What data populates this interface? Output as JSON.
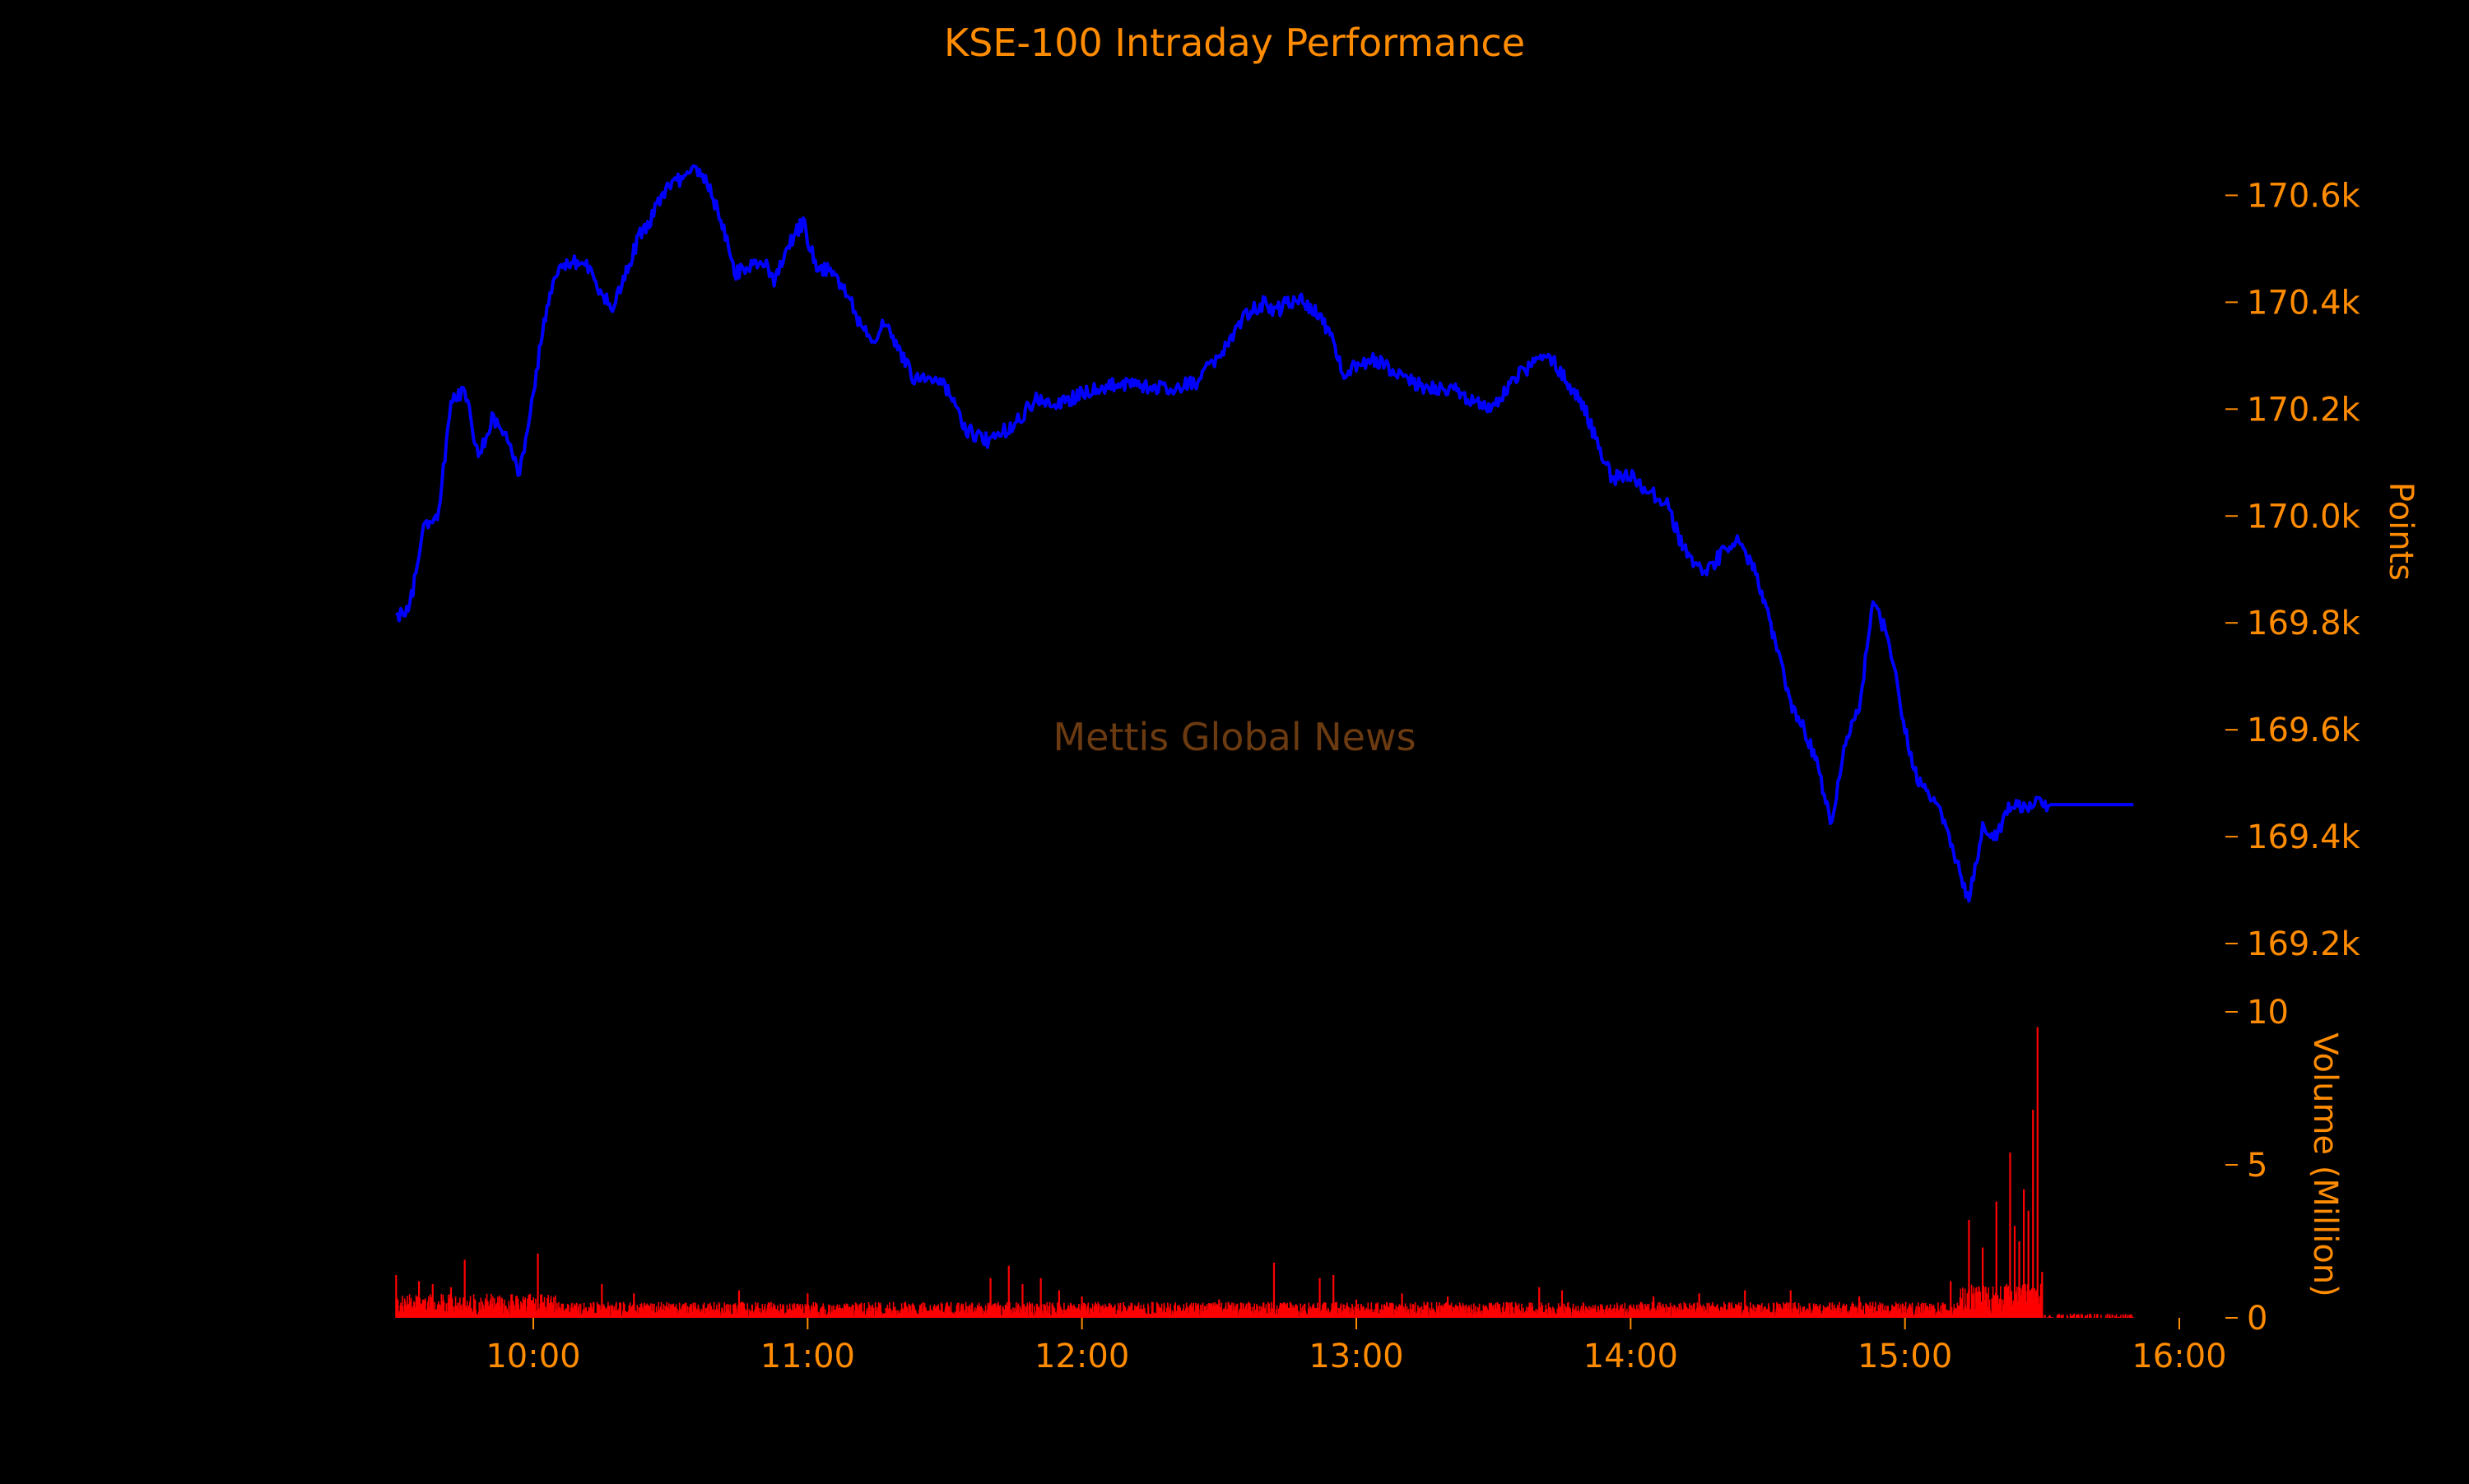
{
  "chart_data": {
    "type": "line",
    "title": "KSE-100 Intraday Performance",
    "watermark": "Mettis Global News",
    "colors": {
      "background": "#000000",
      "text": "#ff8c00",
      "watermark": "#6b3a10",
      "price_line": "#0000ff",
      "volume_bars": "#ff0000"
    },
    "x_axis": {
      "ticks": [
        "10:00",
        "11:00",
        "12:00",
        "13:00",
        "14:00",
        "15:00",
        "16:00"
      ],
      "range": [
        "09:30",
        "16:00"
      ]
    },
    "price_panel": {
      "ylabel": "Points",
      "ticks": [
        "170.6k",
        "170.4k",
        "170.2k",
        "170.0k",
        "169.8k",
        "169.6k",
        "169.4k",
        "169.2k"
      ],
      "tick_values": [
        170600,
        170400,
        170200,
        170000,
        169800,
        169600,
        169400,
        169200
      ],
      "ylim": [
        169180,
        170750
      ],
      "series": [
        {
          "x": [
            "09:30",
            "09:33",
            "09:36",
            "09:39",
            "09:42",
            "09:45",
            "09:48",
            "09:51",
            "09:54",
            "09:57",
            "10:00",
            "10:02",
            "10:05",
            "10:08",
            "10:11",
            "10:14",
            "10:17",
            "10:20",
            "10:23",
            "10:26",
            "10:29",
            "10:32",
            "10:35",
            "10:38",
            "10:41",
            "10:44",
            "10:47",
            "10:50",
            "10:53",
            "10:56",
            "10:59",
            "11:02",
            "11:05",
            "11:08",
            "11:11",
            "11:14",
            "11:17",
            "11:20",
            "11:23",
            "11:26",
            "11:29",
            "11:32",
            "11:35",
            "11:40",
            "11:45",
            "11:50",
            "11:55",
            "12:00",
            "12:05",
            "12:10",
            "12:15",
            "12:20",
            "12:25",
            "12:30",
            "12:35",
            "12:40",
            "12:42",
            "12:45",
            "12:48",
            "12:51",
            "12:54",
            "12:57",
            "13:00",
            "13:02",
            "13:05",
            "13:10",
            "13:15",
            "13:20",
            "13:25",
            "13:30",
            "13:35",
            "13:38",
            "13:41",
            "13:44",
            "13:47",
            "13:50",
            "13:53",
            "13:56",
            "13:59",
            "14:02",
            "14:05",
            "14:08",
            "14:11",
            "14:14",
            "14:17",
            "14:20",
            "14:23",
            "14:26",
            "14:29",
            "14:32",
            "14:35",
            "14:38",
            "14:41",
            "14:44",
            "14:47",
            "14:50",
            "14:53",
            "14:56",
            "14:59",
            "15:02",
            "15:05",
            "15:08",
            "15:11",
            "15:14",
            "15:17",
            "15:20",
            "15:23",
            "15:26",
            "15:29",
            "15:32",
            "15:35",
            "15:50"
          ],
          "values": [
            169810,
            169830,
            169980,
            169990,
            170210,
            170240,
            170110,
            170180,
            170160,
            170080,
            170220,
            170350,
            170460,
            170470,
            170480,
            170430,
            170390,
            170450,
            170520,
            170560,
            170610,
            170630,
            170660,
            170620,
            170560,
            170450,
            170470,
            170480,
            170440,
            170510,
            170550,
            170460,
            170460,
            170430,
            170370,
            170330,
            170360,
            170310,
            170260,
            170250,
            170260,
            170210,
            170160,
            170140,
            170170,
            170220,
            170210,
            170230,
            170240,
            170250,
            170240,
            170240,
            170250,
            170300,
            170370,
            170400,
            170380,
            170400,
            170410,
            170380,
            170350,
            170270,
            170280,
            170290,
            170290,
            170260,
            170240,
            170240,
            170220,
            170200,
            170260,
            170280,
            170300,
            170280,
            170240,
            170200,
            170130,
            170070,
            170080,
            170060,
            170040,
            170020,
            169950,
            169900,
            169900,
            169930,
            169960,
            169920,
            169850,
            169750,
            169650,
            169600,
            169530,
            169420,
            169580,
            169640,
            169840,
            169780,
            169650,
            169520,
            169480,
            169440,
            169360,
            169280,
            169420,
            169400,
            169460,
            169460,
            169460,
            169460,
            169460,
            169460
          ]
        }
      ]
    },
    "volume_panel": {
      "ylabel": "Volume (Million)",
      "ticks": [
        "10",
        "5",
        "0"
      ],
      "tick_values": [
        10,
        5,
        0
      ],
      "ylim": [
        0,
        10
      ],
      "spikes": {
        "x": [
          "09:30",
          "09:35",
          "09:38",
          "09:42",
          "09:45",
          "10:01",
          "10:15",
          "10:22",
          "10:45",
          "11:00",
          "11:40",
          "11:44",
          "11:47",
          "11:51",
          "11:55",
          "12:00",
          "12:30",
          "12:42",
          "12:52",
          "12:55",
          "13:00",
          "13:10",
          "13:20",
          "13:40",
          "13:45",
          "14:05",
          "14:15",
          "14:25",
          "14:35",
          "14:50",
          "15:10",
          "15:14",
          "15:17",
          "15:20",
          "15:23",
          "15:24",
          "15:25",
          "15:26",
          "15:27",
          "15:28",
          "15:29",
          "15:30"
        ],
        "values": [
          1.4,
          1.2,
          1.1,
          1.0,
          1.9,
          2.1,
          1.1,
          0.8,
          0.9,
          0.8,
          1.3,
          1.7,
          1.1,
          1.3,
          0.9,
          0.7,
          0.6,
          1.8,
          1.3,
          1.4,
          0.6,
          0.8,
          0.7,
          1.0,
          0.9,
          0.7,
          0.8,
          0.9,
          0.9,
          0.7,
          1.2,
          3.2,
          2.3,
          3.8,
          5.4,
          3.0,
          2.5,
          4.2,
          3.5,
          6.8,
          9.5,
          1.5
        ]
      },
      "baseline_level": 0.3,
      "late_level": 0.08
    }
  }
}
